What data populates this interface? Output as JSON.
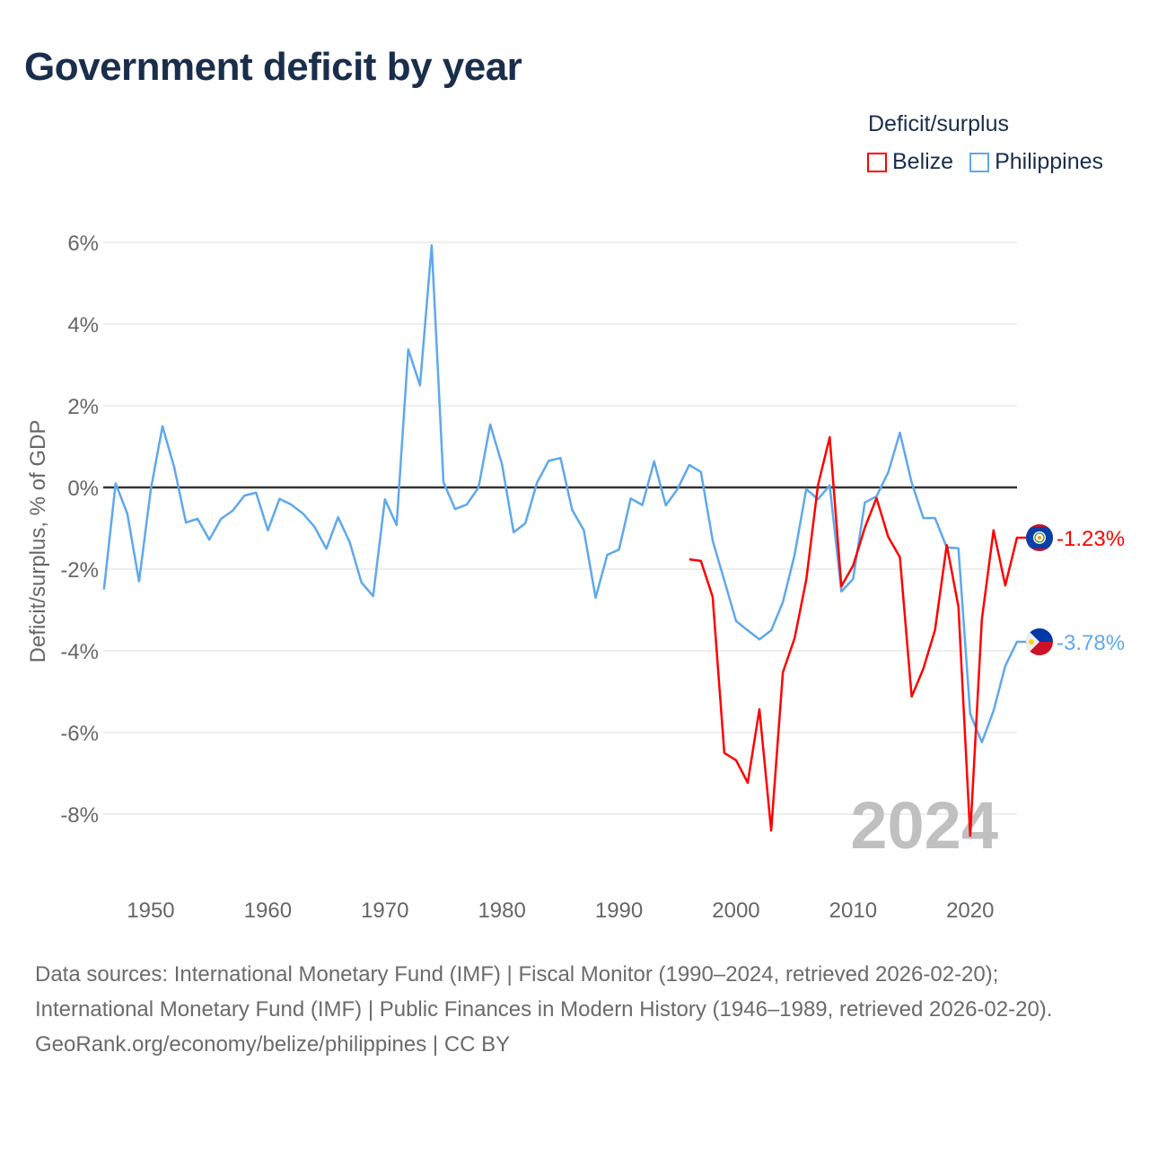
{
  "chart_data": {
    "type": "line",
    "title": "Government deficit by year",
    "ylabel": "Deficit/surplus, % of GDP",
    "xlabel": "",
    "ylim": [
      -9.8,
      6.4
    ],
    "xlim": [
      1946,
      2024
    ],
    "yticks": [
      6,
      4,
      2,
      0,
      -2,
      -4,
      -6,
      -8
    ],
    "ytick_labels": [
      "6%",
      "4%",
      "2%",
      "0%",
      "-2%",
      "-4%",
      "-6%",
      "-8%"
    ],
    "xticks": [
      1950,
      1960,
      1970,
      1980,
      1990,
      2000,
      2010,
      2020
    ],
    "xtick_labels": [
      "1950",
      "1960",
      "1970",
      "1980",
      "1990",
      "2000",
      "2010",
      "2020"
    ],
    "grid": true,
    "legend_title": "Deficit/surplus",
    "legend_position": "top-right",
    "year_watermark": "2024",
    "series": [
      {
        "name": "Belize",
        "color": "#ff0000",
        "end_label": "-1.23%",
        "flag": "belize-flag",
        "start_year": 1996,
        "values": [
          -1.76,
          -1.8,
          -2.68,
          -6.5,
          -6.68,
          -7.23,
          -5.43,
          -8.4,
          -4.53,
          -3.69,
          -2.26,
          0.05,
          1.23,
          -2.42,
          -1.91,
          -0.99,
          -0.26,
          -1.21,
          -1.71,
          -5.12,
          -4.44,
          -3.49,
          -1.41,
          -2.92,
          -8.53,
          -3.23,
          -1.05,
          -2.4,
          -1.23
        ]
      },
      {
        "name": "Philippines",
        "color": "#5ea8ec",
        "end_label": "-3.78%",
        "flag": "philippines-flag",
        "start_year": 1946,
        "values": [
          -2.5,
          0.1,
          -0.65,
          -2.3,
          -0.05,
          1.5,
          0.5,
          -0.86,
          -0.77,
          -1.28,
          -0.77,
          -0.57,
          -0.2,
          -0.13,
          -1.05,
          -0.28,
          -0.42,
          -0.64,
          -0.97,
          -1.5,
          -0.73,
          -1.34,
          -2.33,
          -2.66,
          -0.29,
          -0.92,
          3.38,
          2.5,
          5.93,
          0.13,
          -0.53,
          -0.42,
          0,
          1.54,
          0.57,
          -1.1,
          -0.88,
          0.12,
          0.65,
          0.72,
          -0.55,
          -1.05,
          -2.7,
          -1.65,
          -1.52,
          -0.27,
          -0.43,
          0.64,
          -0.44,
          -0.04,
          0.55,
          0.38,
          -1.3,
          -2.28,
          -3.27,
          -3.5,
          -3.72,
          -3.5,
          -2.81,
          -1.65,
          -0.04,
          -0.29,
          0.05,
          -2.55,
          -2.24,
          -0.37,
          -0.22,
          0.37,
          1.34,
          0.12,
          -0.75,
          -0.75,
          -1.47,
          -1.49,
          -5.54,
          -6.24,
          -5.47,
          -4.37,
          -3.78
        ]
      }
    ]
  },
  "footer": {
    "line1": "Data sources: International Monetary Fund (IMF) | Fiscal Monitor (1990–2024, retrieved 2026-02-20);",
    "line2": "International Monetary Fund (IMF) | Public Finances in Modern History (1946–1989, retrieved 2026-02-20).",
    "line3": "GeoRank.org/economy/belize/philippines | CC BY"
  }
}
